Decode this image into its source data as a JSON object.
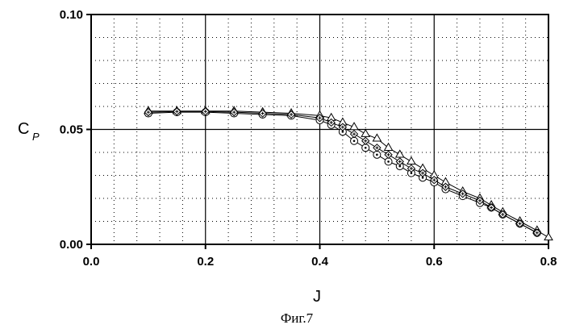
{
  "chart_data": {
    "type": "scatter",
    "xlabel": "J",
    "ylabel": "C",
    "ylabel_subscript": "P",
    "caption": "Фиг.7",
    "xlim": [
      0.0,
      0.8
    ],
    "ylim": [
      0.0,
      0.1
    ],
    "x_ticks": [
      "0.0",
      "0.2",
      "0.4",
      "0.6",
      "0.8"
    ],
    "y_ticks": [
      "0.00",
      "0.05",
      "0.10"
    ],
    "grid": true,
    "series": [
      {
        "marker": "triangle",
        "points": [
          [
            0.1,
            0.058
          ],
          [
            0.15,
            0.058
          ],
          [
            0.2,
            0.058
          ],
          [
            0.25,
            0.058
          ],
          [
            0.3,
            0.0575
          ],
          [
            0.35,
            0.057
          ],
          [
            0.4,
            0.056
          ],
          [
            0.42,
            0.055
          ],
          [
            0.44,
            0.053
          ],
          [
            0.46,
            0.051
          ],
          [
            0.48,
            0.048
          ],
          [
            0.5,
            0.046
          ],
          [
            0.52,
            0.042
          ],
          [
            0.54,
            0.039
          ],
          [
            0.56,
            0.036
          ],
          [
            0.58,
            0.033
          ],
          [
            0.6,
            0.03
          ],
          [
            0.62,
            0.027
          ],
          [
            0.65,
            0.023
          ],
          [
            0.68,
            0.02
          ],
          [
            0.7,
            0.017
          ],
          [
            0.72,
            0.014
          ],
          [
            0.75,
            0.01
          ],
          [
            0.78,
            0.006
          ],
          [
            0.8,
            0.003
          ]
        ]
      },
      {
        "marker": "circle",
        "points": [
          [
            0.1,
            0.057
          ],
          [
            0.15,
            0.0575
          ],
          [
            0.2,
            0.0575
          ],
          [
            0.25,
            0.057
          ],
          [
            0.3,
            0.0565
          ],
          [
            0.35,
            0.056
          ],
          [
            0.4,
            0.054
          ],
          [
            0.42,
            0.052
          ],
          [
            0.44,
            0.049
          ],
          [
            0.46,
            0.045
          ],
          [
            0.48,
            0.042
          ],
          [
            0.5,
            0.039
          ],
          [
            0.52,
            0.036
          ],
          [
            0.54,
            0.034
          ],
          [
            0.56,
            0.031
          ],
          [
            0.58,
            0.029
          ],
          [
            0.6,
            0.027
          ],
          [
            0.62,
            0.024
          ],
          [
            0.65,
            0.021
          ],
          [
            0.68,
            0.018
          ],
          [
            0.7,
            0.016
          ],
          [
            0.72,
            0.013
          ],
          [
            0.75,
            0.009
          ],
          [
            0.78,
            0.005
          ]
        ]
      },
      {
        "marker": "diamond",
        "points": [
          [
            0.1,
            0.0575
          ],
          [
            0.15,
            0.0578
          ],
          [
            0.2,
            0.0578
          ],
          [
            0.25,
            0.0575
          ],
          [
            0.3,
            0.057
          ],
          [
            0.35,
            0.0565
          ],
          [
            0.4,
            0.055
          ],
          [
            0.42,
            0.053
          ],
          [
            0.44,
            0.051
          ],
          [
            0.46,
            0.048
          ],
          [
            0.48,
            0.045
          ],
          [
            0.5,
            0.042
          ],
          [
            0.52,
            0.039
          ],
          [
            0.54,
            0.036
          ],
          [
            0.56,
            0.033
          ],
          [
            0.58,
            0.031
          ],
          [
            0.6,
            0.028
          ],
          [
            0.62,
            0.025
          ],
          [
            0.65,
            0.022
          ],
          [
            0.68,
            0.019
          ],
          [
            0.7,
            0.016
          ],
          [
            0.72,
            0.013
          ],
          [
            0.75,
            0.009
          ],
          [
            0.78,
            0.005
          ]
        ]
      }
    ]
  }
}
